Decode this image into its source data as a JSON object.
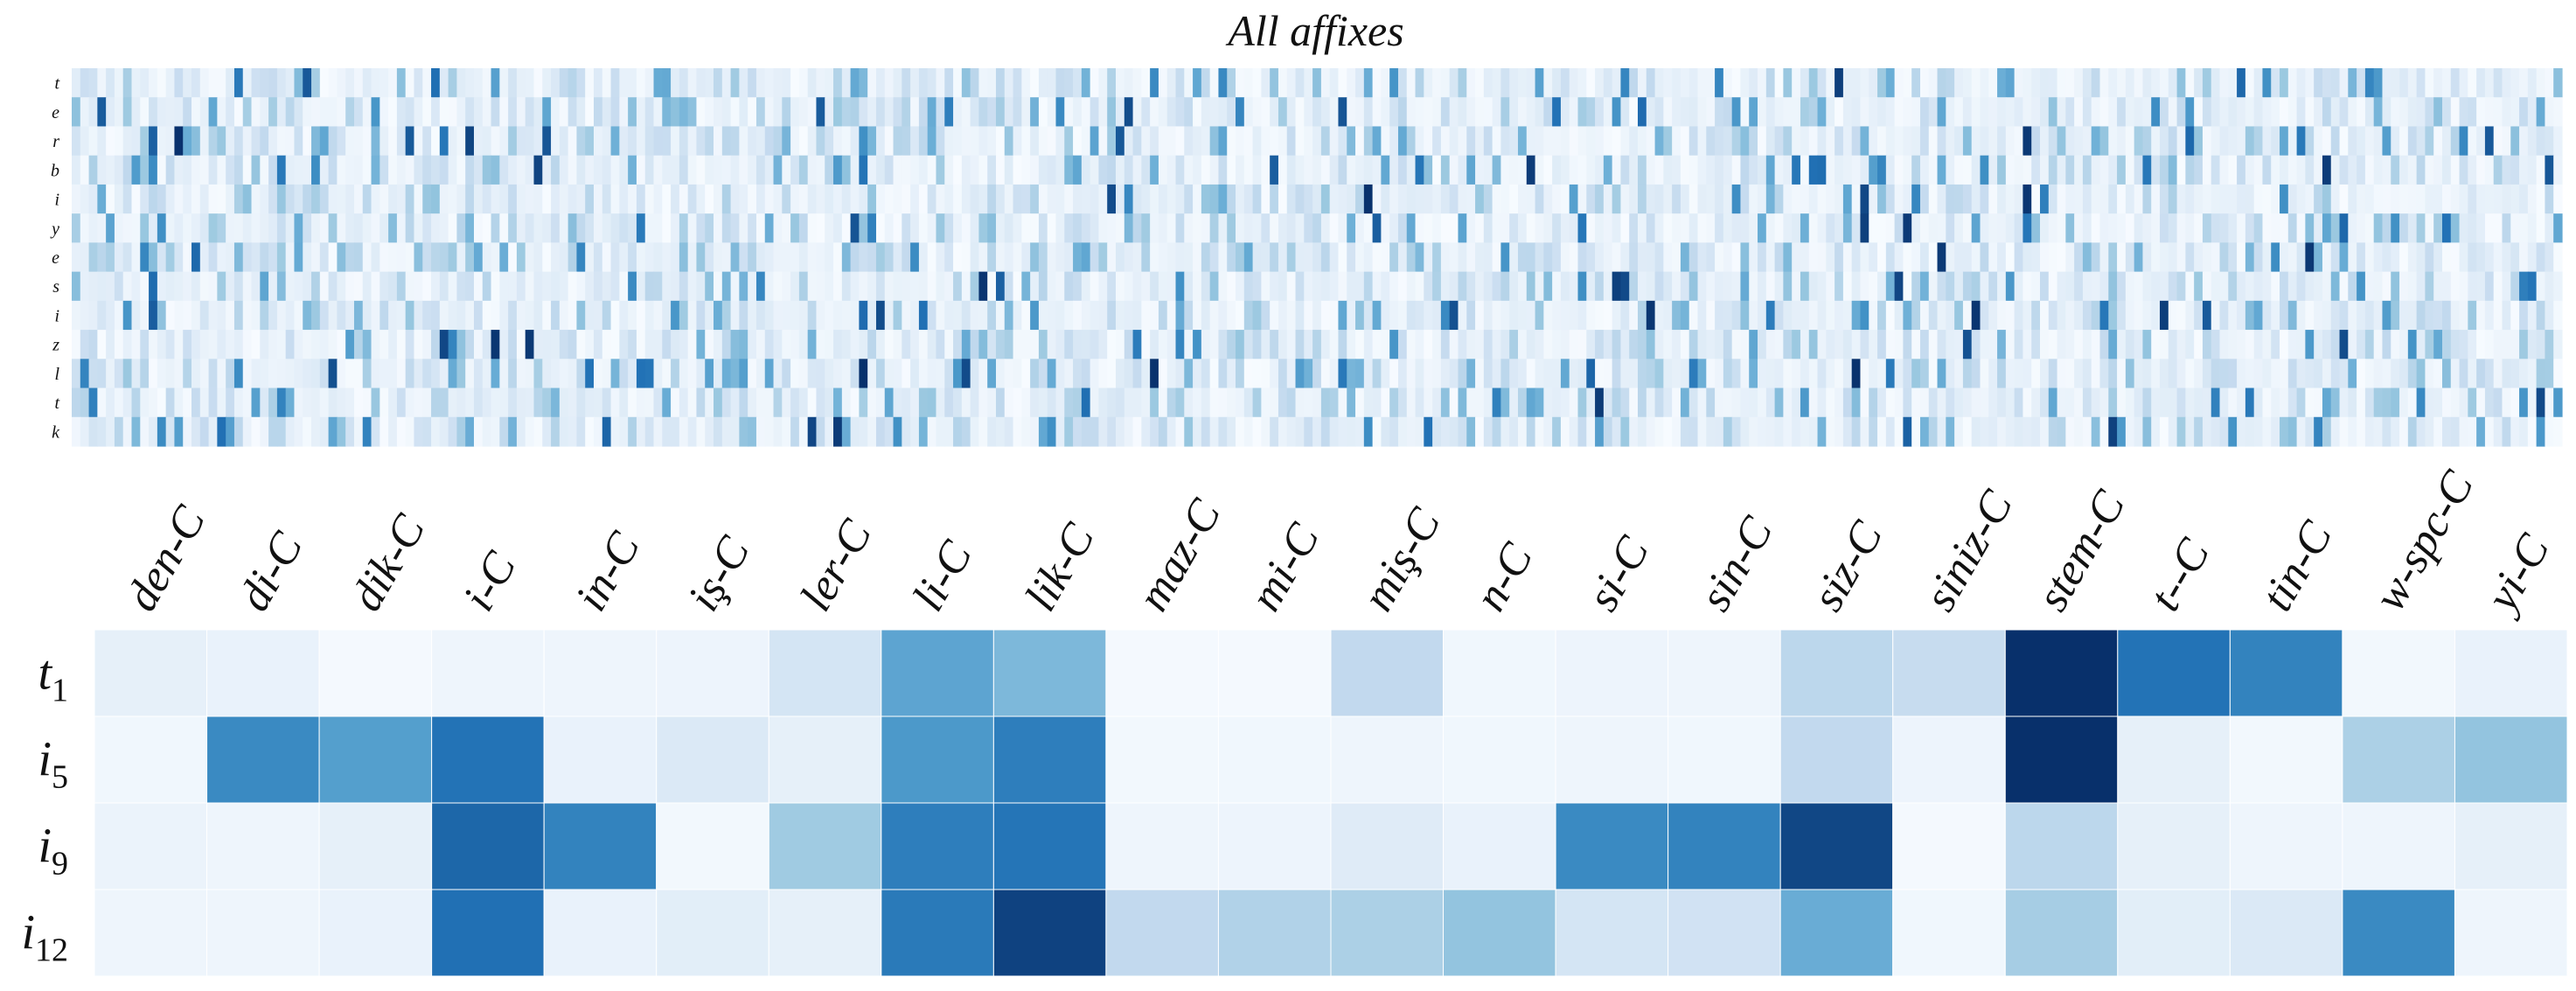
{
  "chart_data": [
    {
      "type": "heatmap",
      "title": "All affixes",
      "rows": [
        "t",
        "e",
        "r",
        "b",
        "i",
        "y",
        "e",
        "s",
        "i",
        "z",
        "l",
        "t",
        "k"
      ],
      "n_columns": 291,
      "colormap": [
        "#f7fbff",
        "#deebf7",
        "#c6dbef",
        "#9ecae1",
        "#6baed6",
        "#4292c6",
        "#2171b5",
        "#08306b"
      ],
      "value_range": [
        0,
        1
      ],
      "values_note": "dense pattern of mostly low values with scattered darker cells"
    },
    {
      "type": "heatmap",
      "columns": [
        "den-C",
        "di-C",
        "dik-C",
        "i-C",
        "in-C",
        "iş-C",
        "ler-C",
        "li-C",
        "lik-C",
        "maz-C",
        "mi-C",
        "miş-C",
        "n-C",
        "si-C",
        "sin-C",
        "siz-C",
        "siniz-C",
        "stem-C",
        "t--C",
        "tin-C",
        "w-spc-C",
        "yi-C"
      ],
      "rows": [
        {
          "base": "t",
          "sub": "1",
          "values": [
            0.1,
            0.08,
            0.02,
            0.05,
            0.05,
            0.06,
            0.2,
            0.62,
            0.52,
            0.02,
            0.02,
            0.3,
            0.04,
            0.06,
            0.05,
            0.32,
            0.28,
            1.0,
            0.85,
            0.78,
            0.03,
            0.08
          ]
        },
        {
          "base": "i",
          "sub": "5",
          "values": [
            0.04,
            0.75,
            0.65,
            0.85,
            0.08,
            0.16,
            0.1,
            0.68,
            0.8,
            0.03,
            0.04,
            0.05,
            0.04,
            0.05,
            0.04,
            0.3,
            0.06,
            1.0,
            0.1,
            0.03,
            0.38,
            0.46
          ]
        },
        {
          "base": "i",
          "sub": "9",
          "values": [
            0.07,
            0.05,
            0.1,
            0.88,
            0.78,
            0.03,
            0.42,
            0.8,
            0.84,
            0.05,
            0.06,
            0.14,
            0.08,
            0.75,
            0.78,
            0.95,
            0.02,
            0.32,
            0.1,
            0.05,
            0.05,
            0.1
          ]
        },
        {
          "base": "i",
          "sub": "12",
          "values": [
            0.05,
            0.05,
            0.08,
            0.86,
            0.08,
            0.12,
            0.1,
            0.82,
            0.96,
            0.3,
            0.36,
            0.38,
            0.46,
            0.2,
            0.22,
            0.58,
            0.04,
            0.4,
            0.12,
            0.16,
            0.75,
            0.05
          ]
        }
      ],
      "colormap": [
        "#f7fbff",
        "#deebf7",
        "#c6dbef",
        "#9ecae1",
        "#6baed6",
        "#4292c6",
        "#2171b5",
        "#08306b"
      ],
      "value_range": [
        0,
        1
      ]
    }
  ]
}
